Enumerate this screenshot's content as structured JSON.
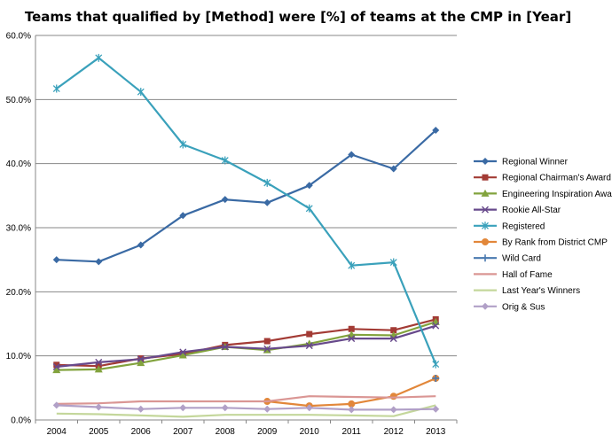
{
  "chart_data": {
    "type": "line",
    "title": "Teams that qualified by [Method]  were [%] of teams at the CMP in [Year]",
    "xlabel": "",
    "ylabel": "",
    "x": [
      "2004",
      "2005",
      "2006",
      "2007",
      "2008",
      "2009",
      "2010",
      "2011",
      "2012",
      "2013"
    ],
    "ylim": [
      0,
      60
    ],
    "yticks": [
      "0.0%",
      "10.0%",
      "20.0%",
      "30.0%",
      "40.0%",
      "50.0%",
      "60.0%"
    ],
    "grid": true,
    "legend_position": "right",
    "series": [
      {
        "name": "Regional Winner",
        "color": "#3a6aa4",
        "marker": "diamond",
        "values": [
          25.0,
          24.7,
          27.3,
          31.9,
          34.4,
          33.9,
          36.6,
          41.4,
          39.2,
          45.2
        ]
      },
      {
        "name": "Regional Chairman's Award",
        "color": "#a33b35",
        "marker": "square",
        "values": [
          8.6,
          8.4,
          9.6,
          10.3,
          11.7,
          12.3,
          13.4,
          14.2,
          14.0,
          15.7
        ]
      },
      {
        "name": "Engineering Inspiration Award",
        "color": "#82a33d",
        "marker": "triangle",
        "values": [
          7.8,
          7.9,
          8.9,
          10.1,
          11.4,
          10.9,
          11.9,
          13.3,
          13.2,
          15.3
        ]
      },
      {
        "name": "Rookie All-Star",
        "color": "#67498b",
        "marker": "x",
        "values": [
          8.3,
          9.0,
          9.5,
          10.6,
          11.4,
          11.1,
          11.6,
          12.7,
          12.7,
          14.7
        ]
      },
      {
        "name": "Registered",
        "color": "#3aa1bb",
        "marker": "star",
        "values": [
          51.7,
          56.5,
          51.2,
          43.0,
          40.5,
          37.0,
          33.0,
          24.1,
          24.6,
          8.7
        ]
      },
      {
        "name": "By Rank from District CMP",
        "color": "#e2873a",
        "marker": "circle",
        "values": [
          null,
          null,
          null,
          null,
          null,
          2.9,
          2.2,
          2.5,
          3.7,
          6.5
        ]
      },
      {
        "name": "Wild Card",
        "color": "#4a7ab0",
        "marker": "plus",
        "values": [
          null,
          null,
          null,
          null,
          null,
          null,
          null,
          null,
          null,
          6.5
        ]
      },
      {
        "name": "Hall of Fame",
        "color": "#da9694",
        "marker": "none",
        "values": [
          2.5,
          2.6,
          2.9,
          2.9,
          2.9,
          2.9,
          3.7,
          3.6,
          3.5,
          3.7
        ]
      },
      {
        "name": "Last Year's Winners",
        "color": "#c4d79b",
        "marker": "none",
        "values": [
          1.0,
          0.9,
          0.7,
          0.5,
          0.8,
          0.8,
          0.8,
          0.7,
          0.6,
          2.3
        ]
      },
      {
        "name": "Orig & Sus",
        "color": "#b1a0c7",
        "marker": "diamond",
        "values": [
          2.3,
          2.0,
          1.7,
          1.9,
          1.9,
          1.7,
          1.9,
          1.6,
          1.6,
          1.7
        ]
      }
    ]
  }
}
